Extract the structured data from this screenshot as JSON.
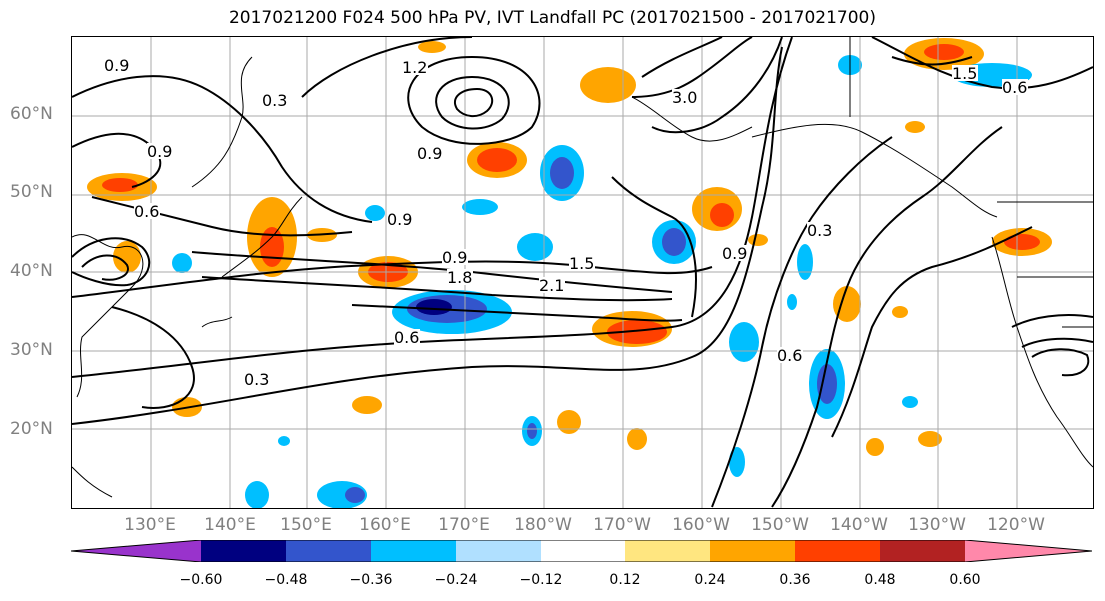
{
  "title": "2017021200 F024 500 hPa PV, IVT Landfall PC (2017021500 - 2017021700)",
  "latitude_labels": [
    "60°N",
    "50°N",
    "40°N",
    "30°N",
    "20°N"
  ],
  "longitude_labels": [
    "130°E",
    "140°E",
    "150°E",
    "160°E",
    "170°E",
    "180°W",
    "170°W",
    "160°W",
    "150°W",
    "140°W",
    "130°W",
    "120°W"
  ],
  "contour_labels": [
    "0.9",
    "0.9",
    "1.2",
    "0.3",
    "3.0",
    "1.5",
    "0.6",
    "0.9",
    "0.6",
    "0.9",
    "1.5",
    "1.8",
    "2.1",
    "0.9",
    "0.9",
    "0.6",
    "0.3",
    "0.6",
    "0.3"
  ],
  "colorbar": {
    "ticks": [
      "−0.60",
      "−0.48",
      "−0.36",
      "−0.24",
      "−0.12",
      "0.12",
      "0.24",
      "0.36",
      "0.48",
      "0.60"
    ],
    "colors": [
      "#9933cc",
      "#000080",
      "#3355cc",
      "#00bfff",
      "#b0e0ff",
      "#ffffff",
      "#ffe680",
      "#ffa500",
      "#ff4000",
      "#b22222",
      "#ff88aa"
    ]
  }
}
